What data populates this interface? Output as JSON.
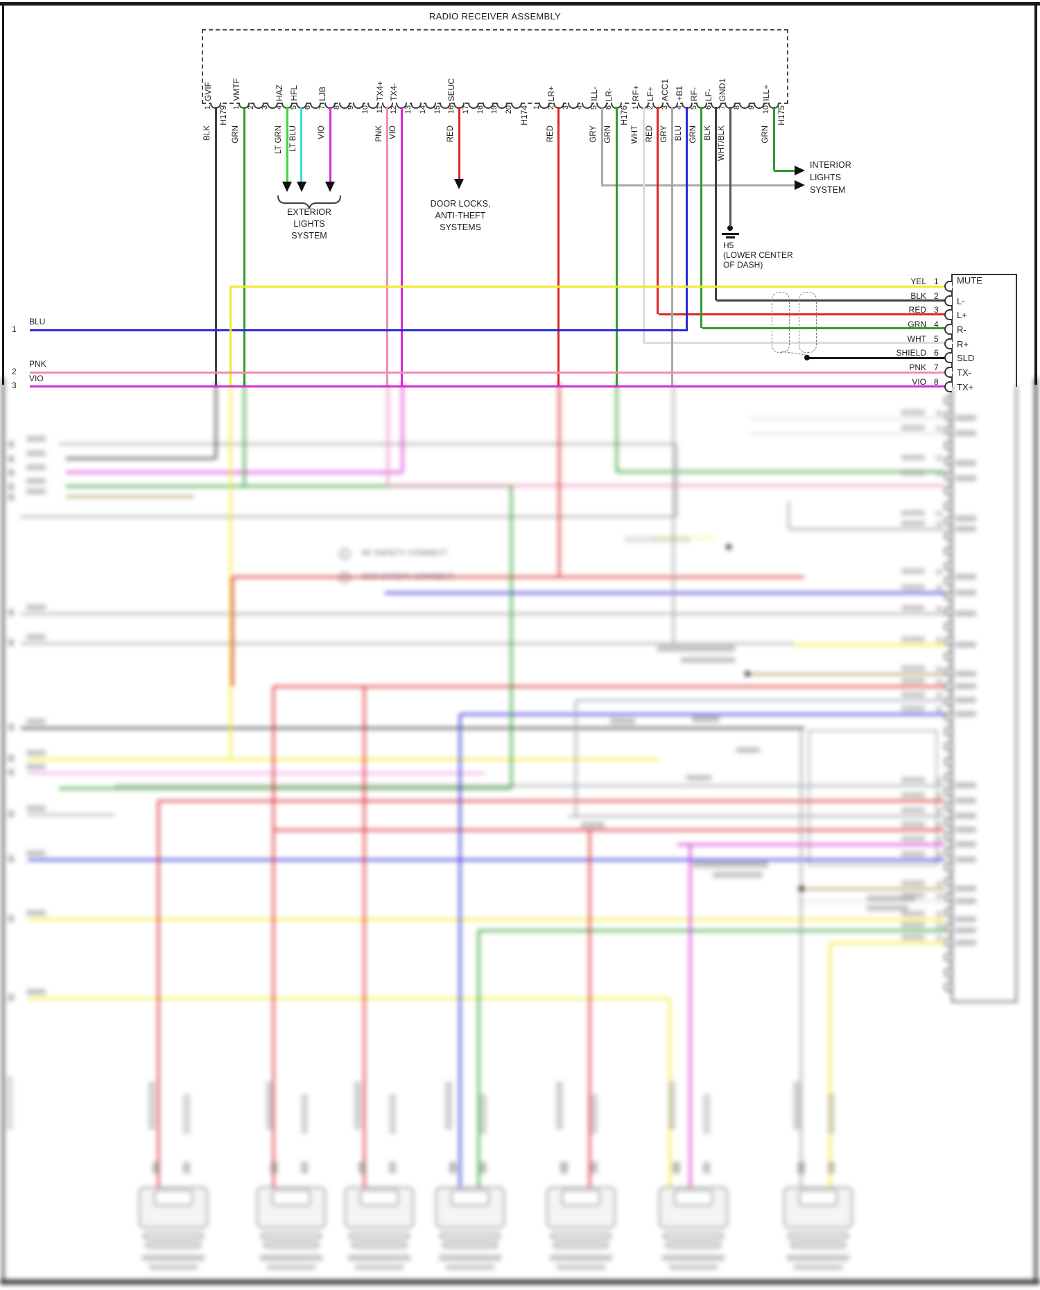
{
  "title": "RADIO RECEIVER ASSEMBLY",
  "connectors": [
    {
      "id": "H179",
      "pin_count": 1,
      "pins": [
        {
          "pin": "1",
          "signal": "GVIF",
          "wire_color": "BLK"
        }
      ]
    },
    {
      "id": "H174",
      "pin_count": 20,
      "pins": [
        {
          "pin": "1",
          "signal": "VMTF",
          "wire_color": "GRN"
        },
        {
          "pin": "4",
          "signal": "HAZ",
          "wire_color": "LT GRN"
        },
        {
          "pin": "5",
          "signal": "HFL",
          "wire_color": "LT BLU"
        },
        {
          "pin": "7",
          "signal": "LJB",
          "wire_color": "VIO"
        },
        {
          "pin": "11",
          "signal": "TX4+",
          "wire_color": "PNK"
        },
        {
          "pin": "12",
          "signal": "TX4-",
          "wire_color": "VIO"
        },
        {
          "pin": "16",
          "signal": "SEUC",
          "wire_color": "RED"
        }
      ]
    },
    {
      "id": "H176",
      "pin_count": 6,
      "pins": [
        {
          "pin": "2",
          "signal": "LR+",
          "wire_color": "RED"
        },
        {
          "pin": "5",
          "signal": "ILL-",
          "wire_color": "GRY"
        },
        {
          "pin": "6",
          "signal": "LR-",
          "wire_color": "GRN"
        }
      ]
    },
    {
      "id": "H175",
      "pin_count": 10,
      "pins": [
        {
          "pin": "1",
          "signal": "RF+",
          "wire_color": "WHT"
        },
        {
          "pin": "2",
          "signal": "LF+",
          "wire_color": "RED"
        },
        {
          "pin": "3",
          "signal": "ACC1",
          "wire_color": "GRY"
        },
        {
          "pin": "4",
          "signal": "+B1",
          "wire_color": "BLU"
        },
        {
          "pin": "5",
          "signal": "RF-",
          "wire_color": "GRN"
        },
        {
          "pin": "6",
          "signal": "LF-",
          "wire_color": "BLK"
        },
        {
          "pin": "7",
          "signal": "GND1",
          "wire_color": "WHT/BLK"
        },
        {
          "pin": "10",
          "signal": "ILL+",
          "wire_color": "GRN"
        }
      ]
    }
  ],
  "destinations": {
    "exterior": [
      "EXTERIOR",
      "LIGHTS",
      "SYSTEM"
    ],
    "door_locks": [
      "DOOR LOCKS,",
      "ANTI-THEFT",
      "SYSTEMS"
    ],
    "interior": [
      "INTERIOR",
      "LIGHTS",
      "SYSTEM"
    ]
  },
  "ground": {
    "id": "H5",
    "location": [
      "(LOWER CENTER",
      "OF DASH)"
    ]
  },
  "left_refs": [
    {
      "num": "1",
      "color": "BLU"
    },
    {
      "num": "2",
      "color": "PNK"
    },
    {
      "num": "3",
      "color": "VIO"
    }
  ],
  "amplifier": {
    "rows": [
      {
        "wire_color": "YEL",
        "pin": "1",
        "signal": "MUTE"
      },
      {
        "wire_color": "BLK",
        "pin": "2",
        "signal": "L-"
      },
      {
        "wire_color": "RED",
        "pin": "3",
        "signal": "L+"
      },
      {
        "wire_color": "GRN",
        "pin": "4",
        "signal": "R-"
      },
      {
        "wire_color": "WHT",
        "pin": "5",
        "signal": "R+"
      },
      {
        "wire_color": "SHIELD",
        "pin": "6",
        "signal": "SLD"
      },
      {
        "wire_color": "PNK",
        "pin": "7",
        "signal": "TX-"
      },
      {
        "wire_color": "VIO",
        "pin": "8",
        "signal": "TX+"
      }
    ]
  },
  "notes": [
    {
      "num": "1",
      "text": "W/ SAFETY CONNECT"
    },
    {
      "num": "2",
      "text": "W/O SAFETY CONNECT"
    }
  ],
  "palette": {
    "blk": "#3f3f3f",
    "grn": "#2e9b2e",
    "ltgrn": "#3fd42f",
    "ltblu": "#3fd8dc",
    "vio": "#d42bd4",
    "pnk": "#f08cb4",
    "red": "#dd2525",
    "gry": "#a8a8a8",
    "wht": "#dcdcdc",
    "blu": "#2828d8",
    "wb": "#555555",
    "yel": "#f2ea2a",
    "olv": "#ac9a56",
    "sld": "#1a1a1a",
    "frame": "#1a1a1a"
  }
}
